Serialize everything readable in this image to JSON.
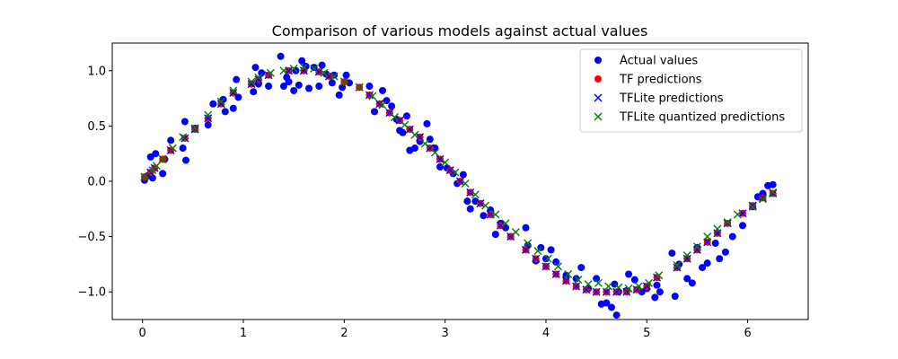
{
  "chart_data": {
    "type": "scatter",
    "title": "Comparison of various models against actual values",
    "xlabel": "",
    "ylabel": "",
    "xlim": [
      -0.3,
      6.6
    ],
    "ylim": [
      -1.25,
      1.25
    ],
    "xticks": [
      0,
      1,
      2,
      3,
      4,
      5,
      6
    ],
    "yticks": [
      -1.0,
      -0.5,
      0.0,
      0.5,
      1.0
    ],
    "xtick_labels": [
      "0",
      "1",
      "2",
      "3",
      "4",
      "5",
      "6"
    ],
    "ytick_labels": [
      "−1.0",
      "−0.5",
      "0.0",
      "0.5",
      "1.0"
    ],
    "grid": false,
    "legend_position": "top-right",
    "series": [
      {
        "name": "Actual values",
        "marker": "circle",
        "color": "#0000ff",
        "x": [
          0.02,
          0.05,
          0.08,
          0.1,
          0.13,
          0.2,
          0.22,
          0.28,
          0.4,
          0.42,
          0.43,
          0.52,
          0.65,
          0.7,
          0.8,
          0.82,
          0.9,
          0.93,
          0.95,
          1.1,
          1.12,
          1.15,
          1.18,
          1.25,
          1.37,
          1.4,
          1.43,
          1.45,
          1.5,
          1.52,
          1.55,
          1.58,
          1.62,
          1.65,
          1.7,
          1.75,
          1.78,
          1.82,
          1.88,
          1.9,
          1.95,
          1.98,
          2.02,
          2.05,
          2.25,
          2.3,
          2.38,
          2.42,
          2.47,
          2.52,
          2.55,
          2.58,
          2.62,
          2.65,
          2.7,
          2.75,
          2.82,
          2.85,
          2.9,
          2.95,
          3.02,
          3.08,
          3.12,
          3.18,
          3.22,
          3.25,
          3.3,
          3.38,
          3.45,
          3.5,
          3.55,
          3.6,
          3.65,
          3.8,
          3.82,
          3.9,
          3.95,
          4.0,
          4.05,
          4.1,
          4.2,
          4.3,
          4.35,
          4.42,
          4.5,
          4.55,
          4.6,
          4.65,
          4.68,
          4.7,
          4.72,
          4.8,
          4.82,
          4.88,
          4.95,
          5.0,
          5.08,
          5.1,
          5.13,
          5.25,
          5.28,
          5.32,
          5.4,
          5.45,
          5.5,
          5.55,
          5.6,
          5.68,
          5.72,
          5.78,
          5.85,
          5.95,
          6.05,
          6.1,
          6.15,
          6.2,
          6.25
        ],
        "y": [
          0.01,
          0.05,
          0.22,
          0.03,
          0.25,
          0.07,
          0.2,
          0.37,
          0.3,
          0.54,
          0.19,
          0.48,
          0.51,
          0.7,
          0.74,
          0.63,
          0.66,
          0.92,
          0.76,
          0.81,
          1.03,
          0.88,
          0.98,
          0.86,
          1.13,
          0.86,
          0.94,
          0.9,
          0.82,
          1.0,
          0.87,
          1.09,
          1.04,
          0.84,
          1.03,
          0.86,
          1.05,
          0.97,
          0.89,
          0.96,
          0.78,
          0.85,
          0.96,
          0.89,
          0.86,
          0.63,
          0.82,
          0.73,
          0.68,
          0.56,
          0.46,
          0.44,
          0.59,
          0.28,
          0.3,
          0.36,
          0.52,
          0.38,
          0.3,
          0.13,
          0.12,
          0.07,
          -0.02,
          0.06,
          -0.18,
          -0.25,
          -0.18,
          -0.31,
          -0.26,
          -0.48,
          -0.38,
          -0.42,
          -0.5,
          -0.42,
          -0.58,
          -0.72,
          -0.6,
          -0.7,
          -0.62,
          -0.73,
          -0.85,
          -0.88,
          -0.78,
          -0.97,
          -0.88,
          -1.11,
          -1.1,
          -1.14,
          -0.93,
          -1.21,
          -1.0,
          -0.99,
          -0.84,
          -0.89,
          -1.0,
          -0.97,
          -1.05,
          -0.94,
          -1.0,
          -0.65,
          -1.04,
          -0.75,
          -0.88,
          -0.92,
          -0.6,
          -0.78,
          -0.74,
          -0.56,
          -0.7,
          -0.64,
          -0.5,
          -0.4,
          -0.23,
          -0.14,
          -0.11,
          -0.04,
          -0.03
        ]
      },
      {
        "name": "TF predictions",
        "marker": "circle",
        "color": "#ff0000",
        "x": [
          0.02,
          0.08,
          0.12,
          0.2,
          0.28,
          0.42,
          0.52,
          0.65,
          0.78,
          0.9,
          1.08,
          1.15,
          1.25,
          1.45,
          1.6,
          1.75,
          1.85,
          2.0,
          2.15,
          2.25,
          2.35,
          2.45,
          2.55,
          2.65,
          2.75,
          2.85,
          2.95,
          3.05,
          3.15,
          3.25,
          3.35,
          3.45,
          3.55,
          3.65,
          3.8,
          3.9,
          4.0,
          4.1,
          4.2,
          4.3,
          4.4,
          4.5,
          4.6,
          4.7,
          4.8,
          4.9,
          5.0,
          5.1,
          5.3,
          5.4,
          5.5,
          5.6,
          5.7,
          5.8,
          5.95,
          6.05,
          6.15,
          6.25
        ],
        "y": [
          0.04,
          0.08,
          0.12,
          0.2,
          0.28,
          0.39,
          0.47,
          0.57,
          0.7,
          0.8,
          0.88,
          0.92,
          0.96,
          1.0,
          1.0,
          0.99,
          0.95,
          0.9,
          0.85,
          0.78,
          0.7,
          0.62,
          0.55,
          0.47,
          0.4,
          0.3,
          0.2,
          0.1,
          0.0,
          -0.1,
          -0.2,
          -0.3,
          -0.4,
          -0.5,
          -0.62,
          -0.7,
          -0.77,
          -0.84,
          -0.9,
          -0.95,
          -0.98,
          -1.0,
          -1.0,
          -1.0,
          -1.0,
          -0.98,
          -0.95,
          -0.87,
          -0.78,
          -0.7,
          -0.62,
          -0.55,
          -0.47,
          -0.38,
          -0.29,
          -0.22,
          -0.15,
          -0.11
        ]
      },
      {
        "name": "TFLite predictions",
        "marker": "x",
        "color": "#0000ff",
        "x": [
          0.02,
          0.08,
          0.12,
          0.2,
          0.28,
          0.42,
          0.52,
          0.65,
          0.78,
          0.9,
          1.08,
          1.15,
          1.25,
          1.45,
          1.6,
          1.75,
          1.85,
          2.0,
          2.15,
          2.25,
          2.35,
          2.45,
          2.55,
          2.65,
          2.75,
          2.85,
          2.95,
          3.05,
          3.15,
          3.25,
          3.35,
          3.45,
          3.55,
          3.65,
          3.8,
          3.9,
          4.0,
          4.1,
          4.2,
          4.3,
          4.4,
          4.5,
          4.6,
          4.7,
          4.8,
          4.9,
          5.0,
          5.1,
          5.3,
          5.4,
          5.5,
          5.6,
          5.7,
          5.8,
          5.95,
          6.05,
          6.15,
          6.25
        ],
        "y": [
          0.04,
          0.08,
          0.12,
          0.2,
          0.28,
          0.39,
          0.47,
          0.57,
          0.7,
          0.8,
          0.88,
          0.92,
          0.96,
          1.0,
          1.0,
          0.99,
          0.95,
          0.9,
          0.85,
          0.78,
          0.7,
          0.62,
          0.55,
          0.47,
          0.4,
          0.3,
          0.2,
          0.1,
          0.0,
          -0.1,
          -0.2,
          -0.3,
          -0.4,
          -0.5,
          -0.62,
          -0.7,
          -0.77,
          -0.84,
          -0.9,
          -0.95,
          -0.98,
          -1.0,
          -1.0,
          -1.0,
          -1.0,
          -0.98,
          -0.95,
          -0.87,
          -0.78,
          -0.7,
          -0.62,
          -0.55,
          -0.47,
          -0.38,
          -0.29,
          -0.22,
          -0.15,
          -0.11
        ]
      },
      {
        "name": "TFLite quantized predictions",
        "marker": "x",
        "color": "#008000",
        "x": [
          0.02,
          0.1,
          0.14,
          0.2,
          0.3,
          0.4,
          0.52,
          0.65,
          0.78,
          0.9,
          1.08,
          1.15,
          1.27,
          1.4,
          1.5,
          1.6,
          1.7,
          1.8,
          1.9,
          2.0,
          2.15,
          2.28,
          2.38,
          2.5,
          2.6,
          2.7,
          2.8,
          2.9,
          3.0,
          3.1,
          3.2,
          3.3,
          3.4,
          3.5,
          3.6,
          3.7,
          3.82,
          3.92,
          4.02,
          4.12,
          4.22,
          4.32,
          4.42,
          4.52,
          4.62,
          4.72,
          4.82,
          4.92,
          5.02,
          5.12,
          5.3,
          5.4,
          5.5,
          5.6,
          5.7,
          5.8,
          5.9,
          6.05,
          6.15,
          6.25
        ],
        "y": [
          0.04,
          0.1,
          0.14,
          0.2,
          0.3,
          0.4,
          0.48,
          0.6,
          0.72,
          0.82,
          0.9,
          0.94,
          0.98,
          1.0,
          1.02,
          1.03,
          1.02,
          0.98,
          0.95,
          0.9,
          0.85,
          0.77,
          0.69,
          0.58,
          0.51,
          0.42,
          0.34,
          0.26,
          0.17,
          0.08,
          -0.02,
          -0.12,
          -0.22,
          -0.3,
          -0.38,
          -0.46,
          -0.56,
          -0.63,
          -0.7,
          -0.77,
          -0.84,
          -0.89,
          -0.93,
          -0.92,
          -0.95,
          -0.96,
          -0.97,
          -0.95,
          -0.92,
          -0.85,
          -0.76,
          -0.67,
          -0.59,
          -0.5,
          -0.43,
          -0.37,
          -0.3,
          -0.23,
          -0.16,
          -0.1
        ]
      }
    ]
  }
}
